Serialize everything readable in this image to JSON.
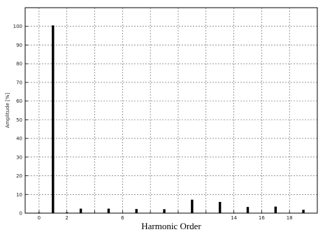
{
  "chart_data": {
    "type": "bar",
    "title": "",
    "xlabel": "Harmonic Order",
    "ylabel": "Amplitude [%]",
    "xlim": [
      -1,
      20
    ],
    "ylim": [
      0,
      110
    ],
    "grid": true,
    "x": [
      0,
      1,
      2,
      3,
      4,
      5,
      6,
      7,
      8,
      9,
      10,
      11,
      12,
      13,
      14,
      15,
      16,
      17,
      18,
      19
    ],
    "values": [
      0.3,
      100.5,
      0.4,
      2.4,
      0.2,
      2.4,
      0.2,
      2.2,
      0.2,
      2.1,
      0.2,
      7.2,
      0.2,
      6.0,
      0.2,
      3.3,
      0.2,
      3.5,
      0.2,
      1.8
    ],
    "xticks": [
      0,
      2,
      4,
      6,
      8,
      10,
      12,
      14,
      16,
      18
    ],
    "xtick_labels": [
      "0",
      "2",
      "",
      "6",
      "",
      "",
      "",
      "14",
      "16",
      "18"
    ],
    "yticks": [
      0,
      10,
      20,
      30,
      40,
      50,
      60,
      70,
      80,
      90,
      100
    ],
    "ytick_labels": [
      "0",
      "10",
      "20",
      "30",
      "40",
      "50",
      "60",
      "70",
      "80",
      "90",
      "100"
    ],
    "bar_color": "#000000",
    "grid_color": "#555555"
  }
}
